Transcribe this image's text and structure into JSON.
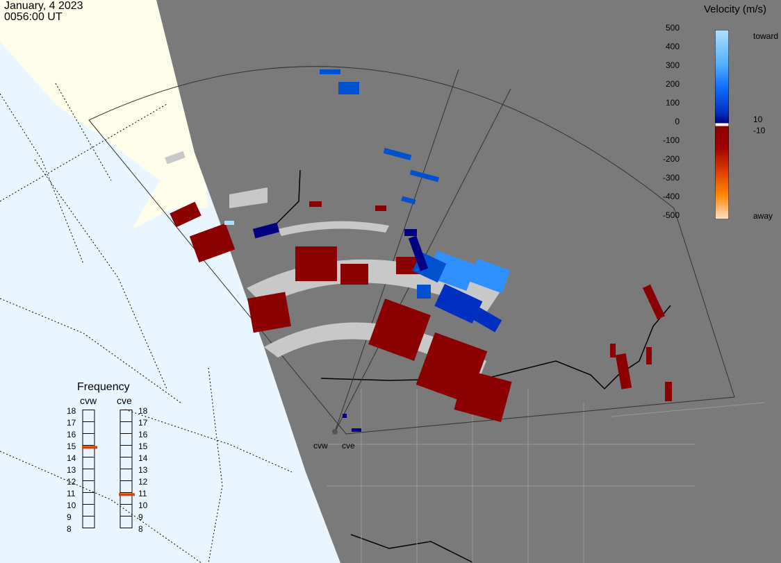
{
  "header": {
    "date": "January, 4 2023",
    "time": "0056:00 UT"
  },
  "legend": {
    "title": "Velocity (m/s)",
    "ticks": [
      "500",
      "400",
      "300",
      "200",
      "100",
      "0",
      "-100",
      "-200",
      "-300",
      "-400",
      "-500"
    ],
    "tag_toward": "toward",
    "tag_away": "away",
    "tag_pos": "10",
    "tag_neg": "-10",
    "colors": [
      "#ffe0c8",
      "#ffb070",
      "#ff8800",
      "#e06000",
      "#c03000",
      "#8b0000",
      "#000080",
      "#0030c0",
      "#1070ff",
      "#55b0ff",
      "#b0e0ff"
    ]
  },
  "frequency": {
    "title": "Frequency",
    "radar_west": "cvw",
    "radar_east": "cve",
    "scale": [
      "18",
      "17",
      "16",
      "15",
      "14",
      "13",
      "12",
      "11",
      "10",
      "9",
      "8"
    ],
    "cvw_value": 14.8,
    "cve_value": 10.8
  },
  "sites": {
    "west": "cvw",
    "east": "cve"
  },
  "colors": {
    "ocean": "#eaf6ff",
    "land_day": "#fdfdea",
    "night": "#7a7a7a",
    "ground_scatter": "#c8c8c8",
    "away_dark": "#8b0000",
    "toward_dark": "#000080",
    "toward_mid": "#0050d0",
    "toward_light": "#3090ff"
  }
}
